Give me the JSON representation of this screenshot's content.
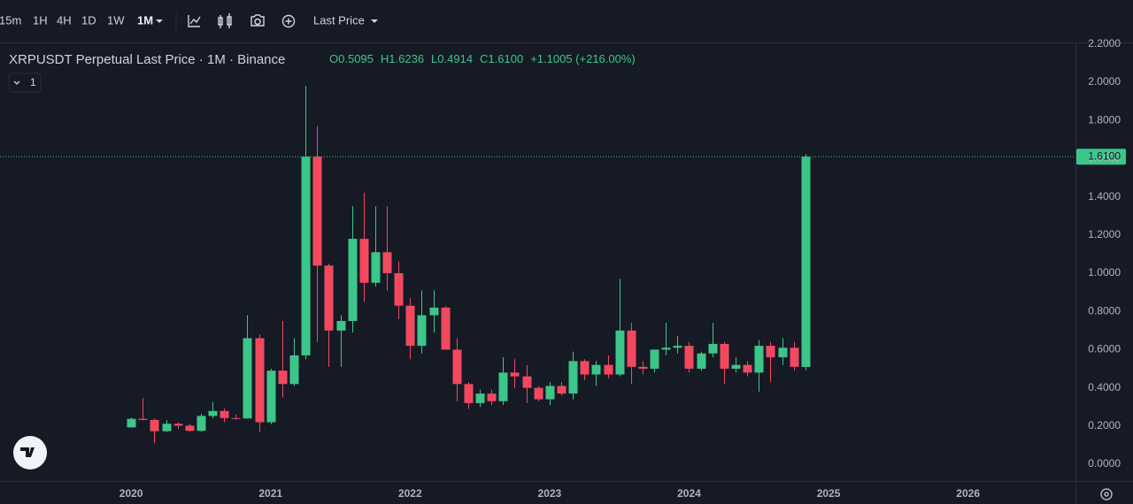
{
  "toolbar": {
    "intervals": [
      "15m",
      "1H",
      "4H",
      "1D",
      "1W",
      "1M"
    ],
    "price_source": "Last Price"
  },
  "chart_data": {
    "type": "candlestick",
    "title": "XRPUSDT Perpetual Last Price · 1M · Binance",
    "legend_values": [
      {
        "key": "O",
        "value": "0.5095"
      },
      {
        "key": "H",
        "value": "1.6236"
      },
      {
        "key": "L",
        "value": "0.4914"
      },
      {
        "key": "C",
        "value": "1.6100"
      }
    ],
    "change": "+1.1005 (+216.00%)",
    "indicator_count": "1",
    "up_color": "#3cc68a",
    "down_color": "#f2495f",
    "x": [
      2020,
      2020.083,
      2020.167,
      2020.25,
      2020.333,
      2020.417,
      2020.5,
      2020.583,
      2020.667,
      2020.75,
      2020.833,
      2020.917,
      2021,
      2021.083,
      2021.167,
      2021.25,
      2021.333,
      2021.417,
      2021.5,
      2021.583,
      2021.667,
      2021.75,
      2021.833,
      2021.917,
      2022,
      2022.083,
      2022.167,
      2022.25,
      2022.333,
      2022.417,
      2022.5,
      2022.583,
      2022.667,
      2022.75,
      2022.833,
      2022.917,
      2023,
      2023.083,
      2023.167,
      2023.25,
      2023.333,
      2023.417,
      2023.5,
      2023.583,
      2023.667,
      2023.75,
      2023.833,
      2023.917,
      2024,
      2024.083,
      2024.167,
      2024.25,
      2024.333,
      2024.417,
      2024.5,
      2024.583,
      2024.667,
      2024.75,
      2024.833
    ],
    "open": [
      0.193,
      0.238,
      0.232,
      0.173,
      0.212,
      0.202,
      0.175,
      0.253,
      0.279,
      0.242,
      0.24,
      0.66,
      0.22,
      0.49,
      0.42,
      0.57,
      1.61,
      1.04,
      0.7,
      0.75,
      1.18,
      0.95,
      1.11,
      1.0,
      0.83,
      0.62,
      0.78,
      0.82,
      0.6,
      0.42,
      0.32,
      0.37,
      0.33,
      0.48,
      0.46,
      0.4,
      0.34,
      0.41,
      0.37,
      0.54,
      0.47,
      0.52,
      0.47,
      0.7,
      0.51,
      0.5,
      0.6,
      0.61,
      0.62,
      0.5,
      0.58,
      0.63,
      0.5,
      0.52,
      0.48,
      0.62,
      0.56,
      0.61,
      0.5095
    ],
    "high": [
      0.245,
      0.346,
      0.24,
      0.232,
      0.219,
      0.212,
      0.265,
      0.325,
      0.292,
      0.26,
      0.78,
      0.68,
      0.5,
      0.75,
      0.66,
      1.98,
      1.77,
      1.05,
      0.78,
      1.35,
      1.42,
      1.35,
      1.35,
      1.06,
      0.87,
      0.91,
      0.91,
      0.83,
      0.66,
      0.43,
      0.39,
      0.39,
      0.56,
      0.55,
      0.52,
      0.41,
      0.43,
      0.43,
      0.59,
      0.55,
      0.54,
      0.57,
      0.97,
      0.74,
      0.54,
      0.58,
      0.74,
      0.67,
      0.64,
      0.59,
      0.74,
      0.64,
      0.56,
      0.54,
      0.65,
      0.64,
      0.66,
      0.64,
      1.6236
    ],
    "low": [
      0.192,
      0.23,
      0.11,
      0.169,
      0.185,
      0.17,
      0.17,
      0.24,
      0.22,
      0.234,
      0.24,
      0.17,
      0.21,
      0.35,
      0.41,
      0.55,
      0.64,
      0.51,
      0.51,
      0.69,
      0.85,
      0.93,
      0.91,
      0.76,
      0.55,
      0.58,
      0.69,
      0.61,
      0.33,
      0.29,
      0.3,
      0.31,
      0.31,
      0.4,
      0.32,
      0.33,
      0.31,
      0.36,
      0.34,
      0.44,
      0.41,
      0.45,
      0.46,
      0.42,
      0.47,
      0.48,
      0.57,
      0.58,
      0.48,
      0.49,
      0.56,
      0.42,
      0.48,
      0.46,
      0.38,
      0.43,
      0.52,
      0.49,
      0.4914
    ],
    "close": [
      0.238,
      0.232,
      0.173,
      0.212,
      0.202,
      0.175,
      0.253,
      0.279,
      0.242,
      0.24,
      0.66,
      0.22,
      0.49,
      0.42,
      0.57,
      1.61,
      1.04,
      0.7,
      0.75,
      1.18,
      0.95,
      1.11,
      1.0,
      0.83,
      0.62,
      0.78,
      0.82,
      0.6,
      0.42,
      0.32,
      0.37,
      0.33,
      0.48,
      0.46,
      0.4,
      0.34,
      0.41,
      0.37,
      0.54,
      0.47,
      0.52,
      0.47,
      0.7,
      0.51,
      0.5,
      0.6,
      0.61,
      0.62,
      0.5,
      0.58,
      0.63,
      0.5,
      0.52,
      0.48,
      0.62,
      0.56,
      0.61,
      0.51,
      1.61
    ],
    "last_price": {
      "value": 1.61,
      "label": "1.6100"
    },
    "xlim": [
      2019.06,
      2026.77
    ],
    "xticks": [
      2020,
      2021,
      2022,
      2023,
      2024,
      2025,
      2026
    ],
    "ylim": [
      -0.083,
      2.208
    ],
    "yticks": [
      {
        "value": 0,
        "label": "0.0000"
      },
      {
        "value": 0.2,
        "label": "0.2000"
      },
      {
        "value": 0.4,
        "label": "0.4000"
      },
      {
        "value": 0.6,
        "label": "0.6000"
      },
      {
        "value": 0.8,
        "label": "0.8000"
      },
      {
        "value": 1,
        "label": "1.0000"
      },
      {
        "value": 1.2,
        "label": "1.2000"
      },
      {
        "value": 1.4,
        "label": "1.4000"
      },
      {
        "value": 1.6,
        "label": "1.6000"
      },
      {
        "value": 1.8,
        "label": "1.8000"
      },
      {
        "value": 2,
        "label": "2.0000"
      },
      {
        "value": 2.2,
        "label": "2.2000"
      }
    ],
    "grid": false
  }
}
